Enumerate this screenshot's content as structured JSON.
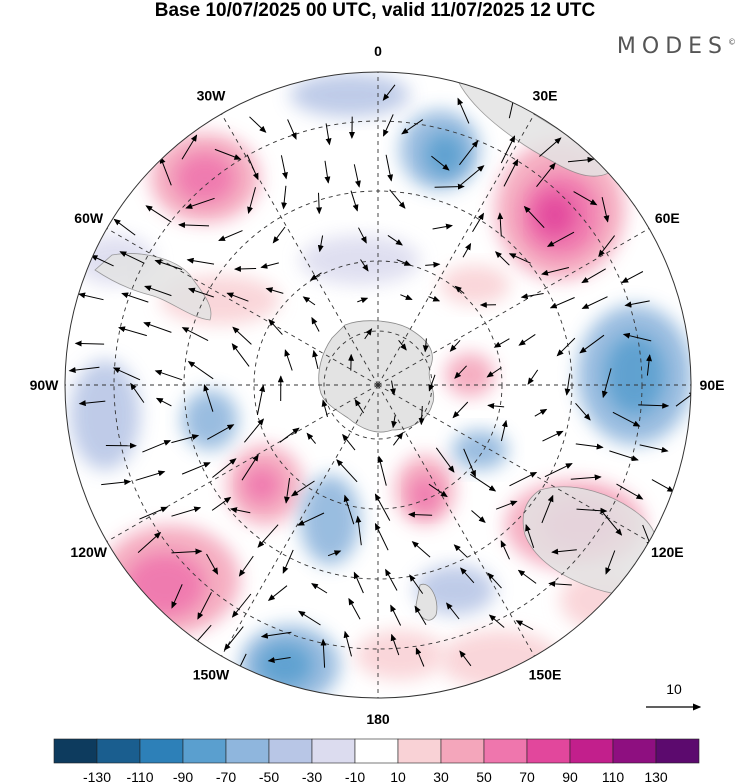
{
  "title": "Base 10/07/2025 00 UTC, valid 11/07/2025 12 UTC",
  "brand": "MODES",
  "brand_mark": "©",
  "longitude_labels": [
    "0",
    "30E",
    "60E",
    "90E",
    "120E",
    "150E",
    "180",
    "150W",
    "120W",
    "90W",
    "60W",
    "30W"
  ],
  "vector_reference": {
    "label": "10"
  },
  "colorbar": {
    "ticks": [
      "-130",
      "-110",
      "-90",
      "-70",
      "-50",
      "-30",
      "-10",
      "10",
      "30",
      "50",
      "70",
      "90",
      "110",
      "130"
    ],
    "colors": [
      "#0d3b5e",
      "#1a5e8f",
      "#2d80b8",
      "#5a9fcf",
      "#8fb6dd",
      "#b8c6e6",
      "#dcdcef",
      "#ffffff",
      "#f9d2d6",
      "#f4a6bb",
      "#ef76ad",
      "#e2479c",
      "#c21f8c",
      "#8e0f80",
      "#5c0a6e"
    ]
  },
  "colors": {
    "land": "#e3e3e3",
    "coast": "#8a8a8a",
    "grid": "#333333",
    "arrow": "#000000"
  }
}
